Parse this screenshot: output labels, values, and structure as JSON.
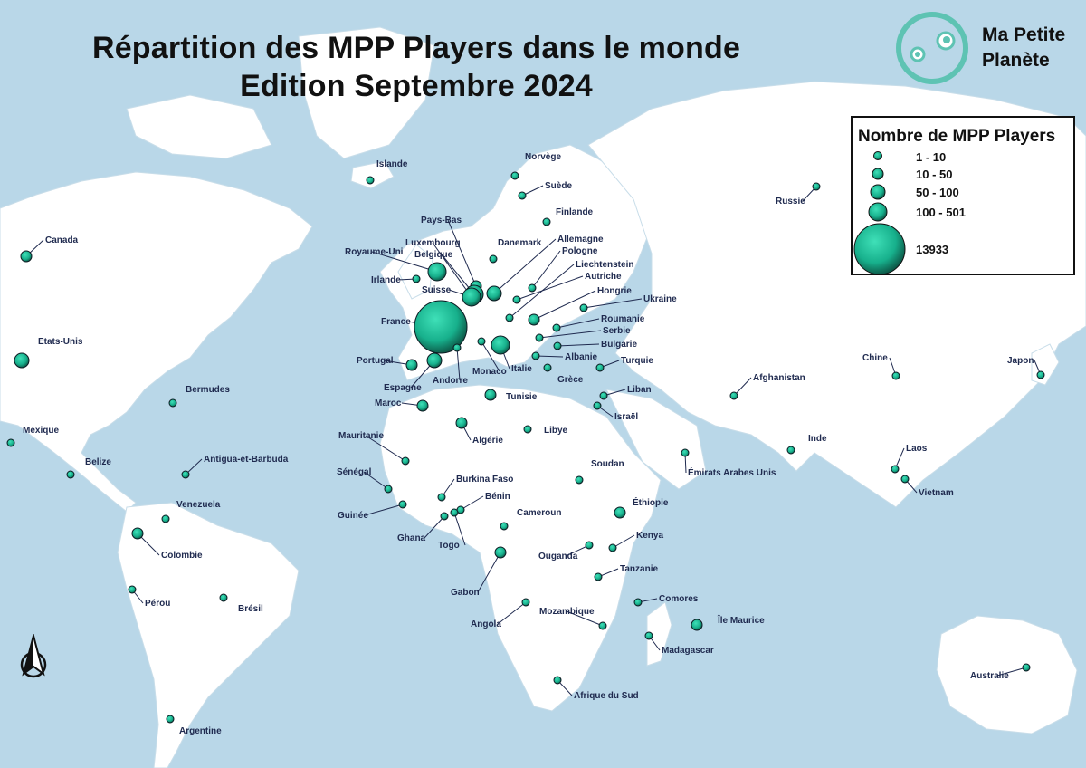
{
  "title": {
    "line1": "Répartition des MPP Players dans le monde",
    "line2": "Edition Septembre 2024"
  },
  "logo": {
    "line1": "Ma Petite",
    "line2": "Planète",
    "icon": "planet-face-logo",
    "color": "#5ec3b3"
  },
  "legend": {
    "title": "Nombre de MPP Players",
    "classes": [
      "1 - 10",
      "10 - 50",
      "50 - 100",
      "100 - 501",
      "13933"
    ]
  },
  "colors": {
    "sea": "#b9d7e8",
    "land": "#ffffff",
    "marker": "#17b08c",
    "label": "#1f2a4f"
  },
  "compass_icon": "north-arrow-icon",
  "countries": [
    {
      "name": "Canada",
      "size": "10 - 50"
    },
    {
      "name": "Etats-Unis",
      "size": "50 - 100"
    },
    {
      "name": "Mexique",
      "size": "1 - 10"
    },
    {
      "name": "Belize",
      "size": "1 - 10"
    },
    {
      "name": "Bermudes",
      "size": "1 - 10"
    },
    {
      "name": "Antigua-et-Barbuda",
      "size": "1 - 10"
    },
    {
      "name": "Venezuela",
      "size": "1 - 10"
    },
    {
      "name": "Colombie",
      "size": "10 - 50"
    },
    {
      "name": "Pérou",
      "size": "1 - 10"
    },
    {
      "name": "Brésil",
      "size": "1 - 10"
    },
    {
      "name": "Argentine",
      "size": "1 - 10"
    },
    {
      "name": "Islande",
      "size": "1 - 10"
    },
    {
      "name": "Norvège",
      "size": "1 - 10"
    },
    {
      "name": "Suède",
      "size": "1 - 10"
    },
    {
      "name": "Finlande",
      "size": "1 - 10"
    },
    {
      "name": "Russie",
      "size": "1 - 10"
    },
    {
      "name": "Pays-Bas",
      "size": "10 - 50"
    },
    {
      "name": "Danemark",
      "size": "1 - 10"
    },
    {
      "name": "Allemagne",
      "size": "50 - 100"
    },
    {
      "name": "Luxembourg",
      "size": "50 - 100"
    },
    {
      "name": "Belgique",
      "size": "100 - 501"
    },
    {
      "name": "Royaume-Uni",
      "size": "100 - 501"
    },
    {
      "name": "Pologne",
      "size": "1 - 10"
    },
    {
      "name": "Liechtenstein",
      "size": "1 - 10"
    },
    {
      "name": "Autriche",
      "size": "1 - 10"
    },
    {
      "name": "Hongrie",
      "size": "10 - 50"
    },
    {
      "name": "Ukraine",
      "size": "1 - 10"
    },
    {
      "name": "Irlande",
      "size": "1 - 10"
    },
    {
      "name": "Suisse",
      "size": "100 - 501"
    },
    {
      "name": "France",
      "size": "13933"
    },
    {
      "name": "Roumanie",
      "size": "1 - 10"
    },
    {
      "name": "Serbie",
      "size": "1 - 10"
    },
    {
      "name": "Bulgarie",
      "size": "1 - 10"
    },
    {
      "name": "Albanie",
      "size": "1 - 10"
    },
    {
      "name": "Grèce",
      "size": "1 - 10"
    },
    {
      "name": "Turquie",
      "size": "1 - 10"
    },
    {
      "name": "Portugal",
      "size": "10 - 50"
    },
    {
      "name": "Espagne",
      "size": "50 - 100"
    },
    {
      "name": "Andorre",
      "size": "1 - 10"
    },
    {
      "name": "Monaco",
      "size": "1 - 10"
    },
    {
      "name": "Italie",
      "size": "100 - 501"
    },
    {
      "name": "Tunisie",
      "size": "10 - 50"
    },
    {
      "name": "Liban",
      "size": "1 - 10"
    },
    {
      "name": "Israël",
      "size": "1 - 10"
    },
    {
      "name": "Maroc",
      "size": "10 - 50"
    },
    {
      "name": "Algérie",
      "size": "10 - 50"
    },
    {
      "name": "Libye",
      "size": "1 - 10"
    },
    {
      "name": "Mauritanie",
      "size": "1 - 10"
    },
    {
      "name": "Sénégal",
      "size": "1 - 10"
    },
    {
      "name": "Guinée",
      "size": "1 - 10"
    },
    {
      "name": "Burkina Faso",
      "size": "1 - 10"
    },
    {
      "name": "Bénin",
      "size": "1 - 10"
    },
    {
      "name": "Ghana",
      "size": "1 - 10"
    },
    {
      "name": "Togo",
      "size": "1 - 10"
    },
    {
      "name": "Cameroun",
      "size": "1 - 10"
    },
    {
      "name": "Soudan",
      "size": "1 - 10"
    },
    {
      "name": "Éthiopie",
      "size": "10 - 50"
    },
    {
      "name": "Kenya",
      "size": "1 - 10"
    },
    {
      "name": "Ouganda",
      "size": "1 - 10"
    },
    {
      "name": "Tanzanie",
      "size": "1 - 10"
    },
    {
      "name": "Gabon",
      "size": "10 - 50"
    },
    {
      "name": "Angola",
      "size": "1 - 10"
    },
    {
      "name": "Mozambique",
      "size": "1 - 10"
    },
    {
      "name": "Comores",
      "size": "1 - 10"
    },
    {
      "name": "Île Maurice",
      "size": "10 - 50"
    },
    {
      "name": "Madagascar",
      "size": "1 - 10"
    },
    {
      "name": "Afrique du Sud",
      "size": "1 - 10"
    },
    {
      "name": "Émirats Arabes Unis",
      "size": "1 - 10"
    },
    {
      "name": "Afghanistan",
      "size": "1 - 10"
    },
    {
      "name": "Inde",
      "size": "1 - 10"
    },
    {
      "name": "Chine",
      "size": "1 - 10"
    },
    {
      "name": "Japon",
      "size": "1 - 10"
    },
    {
      "name": "Laos",
      "size": "1 - 10"
    },
    {
      "name": "Vietnam",
      "size": "1 - 10"
    },
    {
      "name": "Australie",
      "size": "1 - 10"
    }
  ]
}
